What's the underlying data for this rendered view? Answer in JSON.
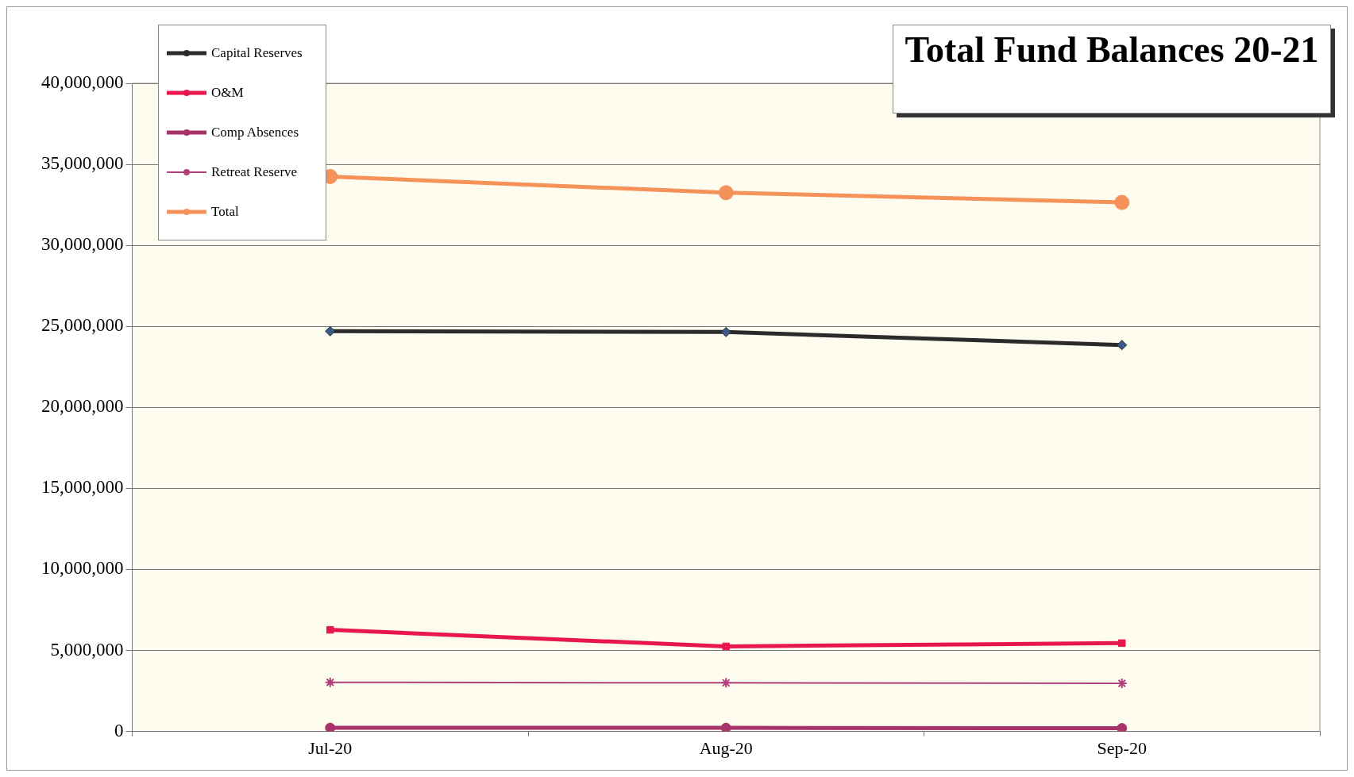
{
  "chart_data": {
    "type": "line",
    "title": "Total Fund Balances 20-21",
    "categories": [
      "Jul-20",
      "Aug-20",
      "Sep-20"
    ],
    "series": [
      {
        "name": "Capital Reserves",
        "color": "#2b2b2b",
        "marker": "diamond",
        "values": [
          24700000,
          24650000,
          23850000
        ]
      },
      {
        "name": "O&M",
        "color": "#e8174f",
        "marker": "square",
        "values": [
          6270000,
          5250000,
          5450000
        ]
      },
      {
        "name": "Comp Absences",
        "color": "#a8336a",
        "marker": "circle",
        "values": [
          220000,
          220000,
          200000
        ]
      },
      {
        "name": "Retreat Reserve",
        "color": "#b0407a",
        "marker": "cross",
        "values": [
          3030000,
          3000000,
          2970000
        ]
      },
      {
        "name": "Total",
        "color": "#f5925a",
        "marker": "circle",
        "values": [
          34250000,
          33250000,
          32650000
        ]
      }
    ],
    "ylim": [
      0,
      40000000
    ],
    "yticks": [
      0,
      {
        "value": 5000000,
        "label": "5,000,000"
      },
      {
        "value": 10000000,
        "label": "10,000,000"
      },
      {
        "value": 15000000,
        "label": "15,000,000"
      },
      {
        "value": 20000000,
        "label": "20,000,000"
      },
      {
        "value": 25000000,
        "label": "25,000,000"
      },
      {
        "value": 30000000,
        "label": "30,000,000"
      },
      {
        "value": 35000000,
        "label": "35,000,000"
      },
      {
        "value": 40000000,
        "label": "40,000,000"
      }
    ],
    "grid": "y",
    "legend": "top left"
  }
}
